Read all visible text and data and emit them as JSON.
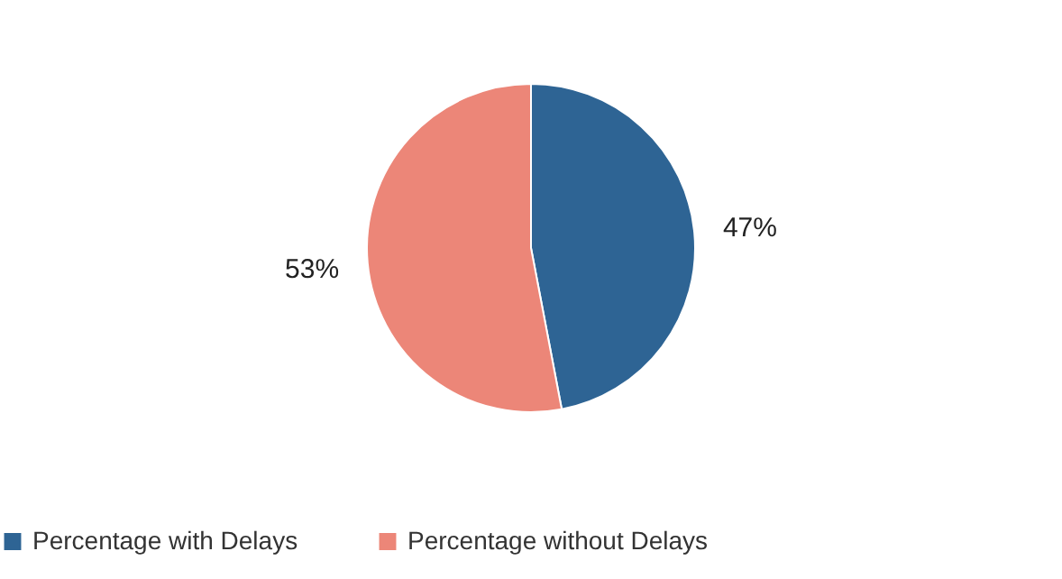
{
  "chart_data": {
    "type": "pie",
    "categories": [
      "Percentage with Delays",
      "Percentage without Delays"
    ],
    "values": [
      47,
      53
    ],
    "colors": [
      "#2e6494",
      "#ec8678"
    ],
    "value_labels": [
      "47%",
      "53%"
    ],
    "legend": "bottom"
  }
}
